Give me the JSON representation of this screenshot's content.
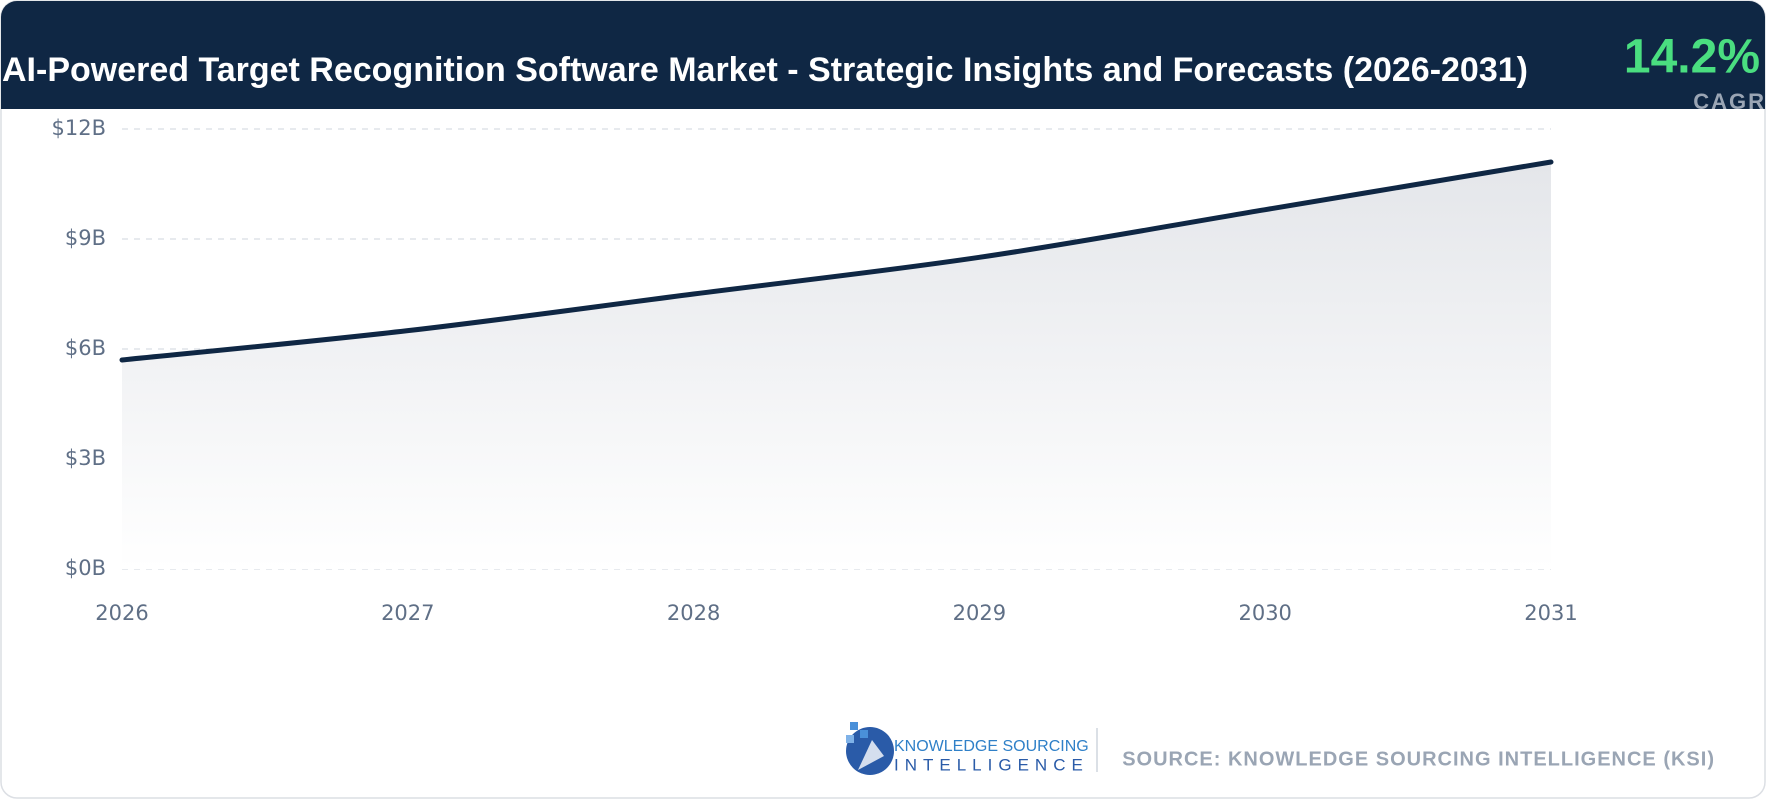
{
  "chart_data": {
    "type": "line",
    "title": "AI-Powered Target Recognition Software Market - Strategic Insights and Forecasts (2026-2031)",
    "cagr_value": "14.2%",
    "cagr_label": "CAGR",
    "categories": [
      "2026",
      "2027",
      "2028",
      "2029",
      "2030",
      "2031"
    ],
    "values": [
      5.7,
      6.5,
      7.5,
      8.5,
      9.8,
      11.1
    ],
    "color": "#0f2744",
    "ylim": [
      0,
      12
    ],
    "yticks": [
      {
        "value": 0,
        "label": "$0B"
      },
      {
        "value": 3,
        "label": "$3B"
      },
      {
        "value": 6,
        "label": "$6B"
      },
      {
        "value": 9,
        "label": "$9B"
      },
      {
        "value": 12,
        "label": "$12B"
      }
    ],
    "grid": true,
    "logo": {
      "line1": "KNOWLEDGE SOURCING",
      "line2": "INTELLIGENCE"
    },
    "source": "SOURCE: KNOWLEDGE SOURCING INTELLIGENCE (KSI)"
  }
}
